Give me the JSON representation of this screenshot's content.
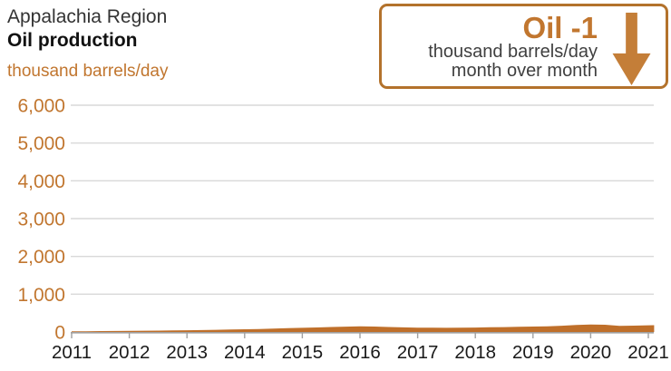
{
  "header": {
    "region": "Appalachia Region",
    "metric": "Oil production",
    "units": "thousand barrels/day"
  },
  "callout": {
    "title_metric": "Oil",
    "title_change": "-1",
    "line1": "thousand barrels/day",
    "line2": "month over month",
    "arrow_direction": "down"
  },
  "colors": {
    "accent_text": "#c1762f",
    "band": "#bf6f2a",
    "callout_border": "#b3722c",
    "arrow": "#c47e38",
    "grid": "#d9d9d9",
    "axis": "#a0a0a0",
    "x_label": "#1a1a1a"
  },
  "chart_data": {
    "type": "area",
    "title": "Appalachia Region Oil production",
    "ylabel": "thousand barrels/day",
    "xlabel": "",
    "ylim": [
      0,
      6000
    ],
    "grid": "horizontal",
    "legend": "none",
    "xticks": [
      2011,
      2012,
      2013,
      2014,
      2015,
      2016,
      2017,
      2018,
      2019,
      2020,
      2021
    ],
    "yticks": [
      0,
      1000,
      2000,
      3000,
      4000,
      5000,
      6000
    ],
    "ytick_labels": [
      "0",
      "1,000",
      "2,000",
      "3,000",
      "4,000",
      "5,000",
      "6,000"
    ],
    "x": [
      2011.0,
      2011.25,
      2011.5,
      2011.75,
      2012.0,
      2012.25,
      2012.5,
      2012.75,
      2013.0,
      2013.25,
      2013.5,
      2013.75,
      2014.0,
      2014.25,
      2014.5,
      2014.75,
      2015.0,
      2015.25,
      2015.5,
      2015.75,
      2016.0,
      2016.25,
      2016.5,
      2016.75,
      2017.0,
      2017.25,
      2017.5,
      2017.75,
      2018.0,
      2018.25,
      2018.5,
      2018.75,
      2019.0,
      2019.25,
      2019.5,
      2019.75,
      2020.0,
      2020.25,
      2020.5,
      2020.75,
      2021.0,
      2021.1
    ],
    "values": [
      18,
      20,
      23,
      26,
      30,
      33,
      36,
      40,
      45,
      50,
      57,
      64,
      72,
      80,
      90,
      100,
      110,
      120,
      132,
      142,
      150,
      145,
      133,
      123,
      116,
      112,
      110,
      113,
      118,
      124,
      130,
      136,
      143,
      152,
      165,
      185,
      200,
      192,
      162,
      168,
      178,
      180
    ]
  }
}
